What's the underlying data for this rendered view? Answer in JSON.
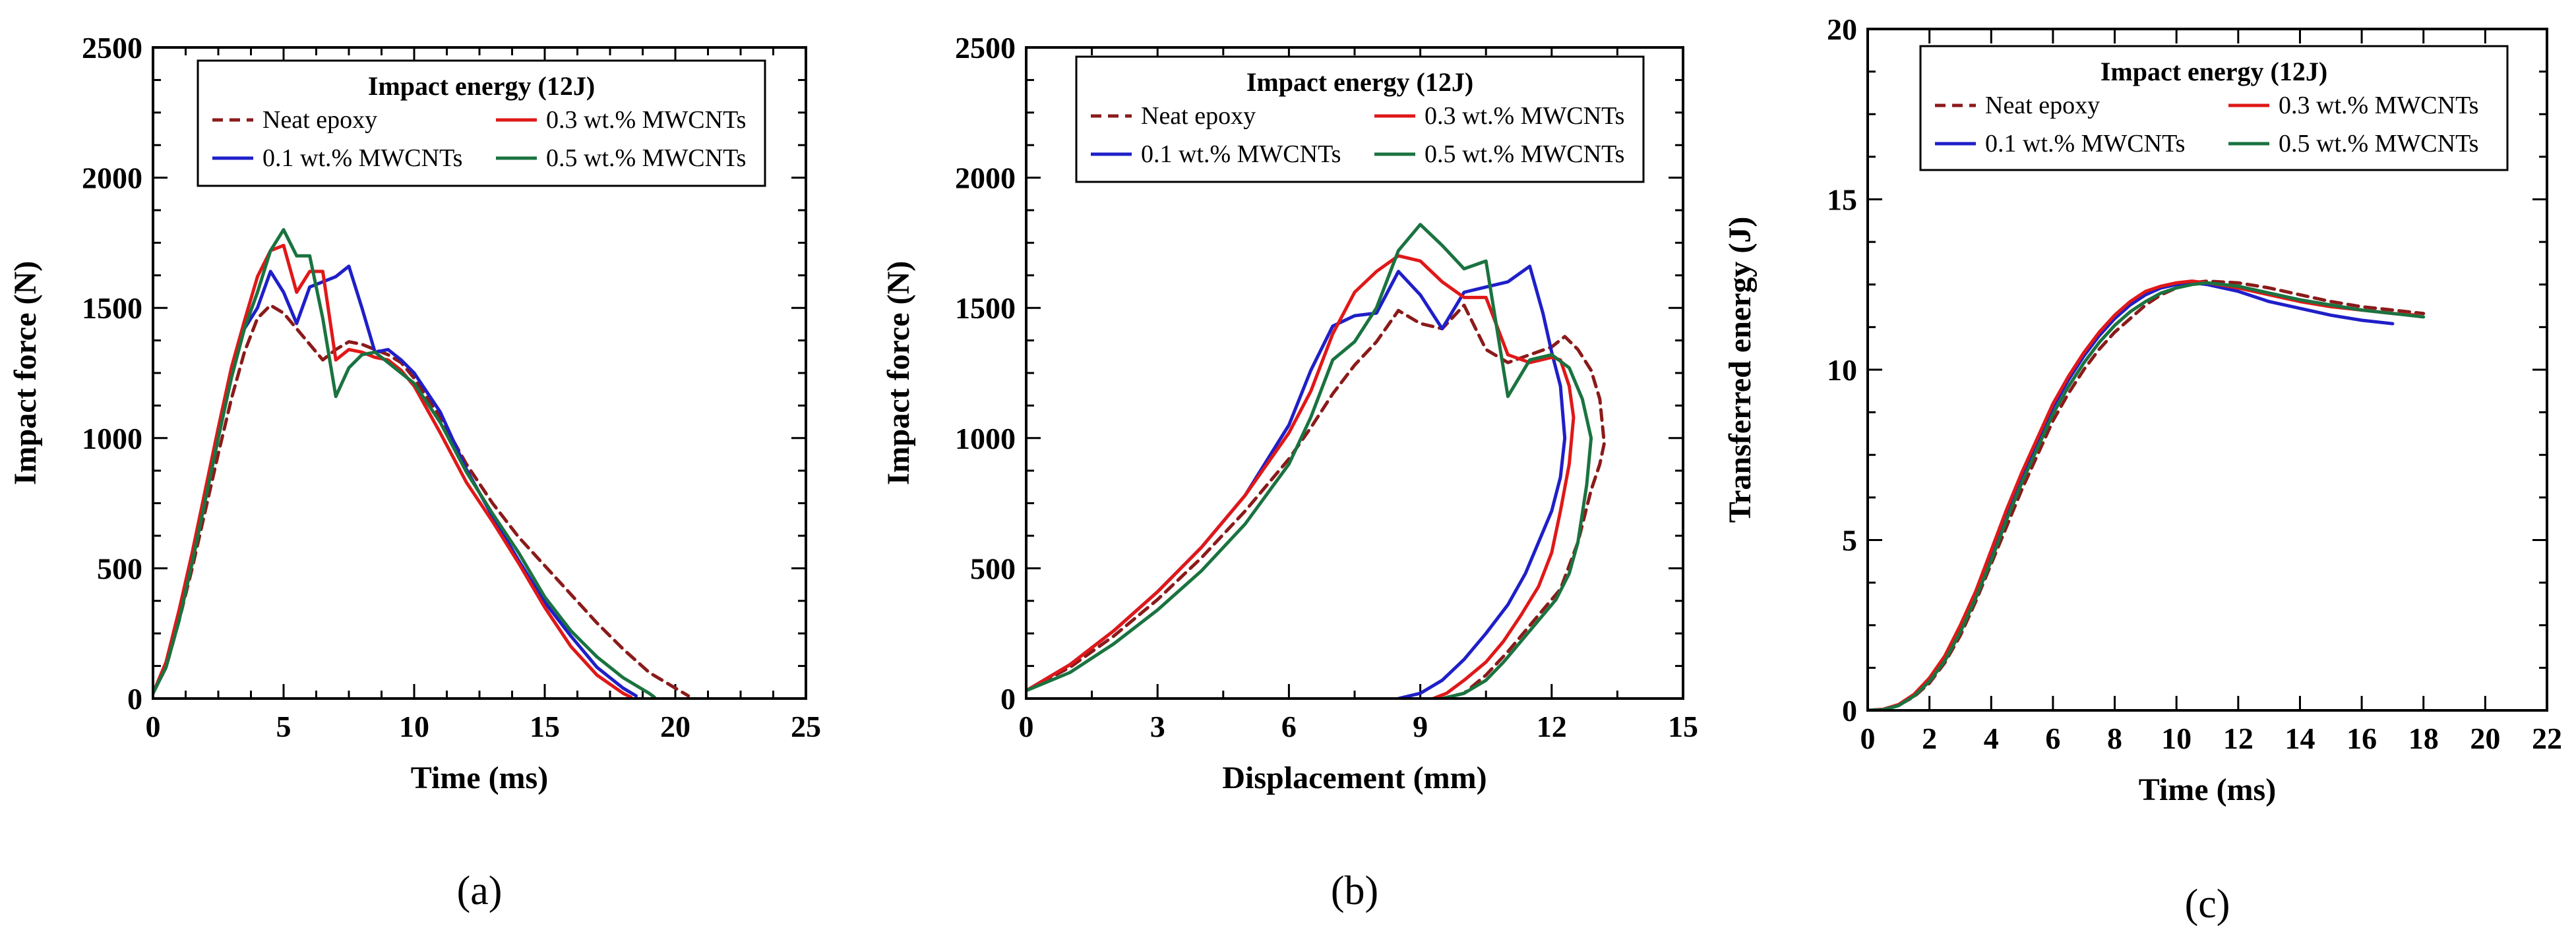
{
  "colors": {
    "neat": "#8b1a1a",
    "mw01": "#1f1fc8",
    "mw03": "#e01818",
    "mw05": "#1a7340"
  },
  "chart_data": [
    {
      "type": "line",
      "panel_label": "(a)",
      "legend_title": "Impact energy (12J)",
      "xlabel": "Time (ms)",
      "ylabel": "Impact force (N)",
      "xlim": [
        0,
        25
      ],
      "ylim": [
        0,
        2500
      ],
      "xticks": [
        "0",
        "5",
        "10",
        "15",
        "20",
        "25"
      ],
      "yticks": [
        "0",
        "500",
        "1000",
        "1500",
        "2000",
        "2500"
      ],
      "series": [
        {
          "name": "Neat epoxy",
          "key": "neat",
          "dashed": true,
          "x": [
            0,
            0.5,
            1,
            1.5,
            2,
            2.5,
            3,
            3.5,
            4,
            4.5,
            5,
            5.5,
            6,
            6.5,
            7,
            7.5,
            8,
            8.5,
            9,
            9.5,
            10,
            11,
            12,
            13,
            14,
            15,
            16,
            17,
            18,
            19,
            20,
            20.5
          ],
          "y": [
            20,
            120,
            300,
            500,
            720,
            940,
            1150,
            1330,
            1460,
            1510,
            1480,
            1420,
            1360,
            1300,
            1340,
            1370,
            1360,
            1340,
            1320,
            1290,
            1230,
            1080,
            900,
            750,
            620,
            510,
            400,
            290,
            190,
            100,
            40,
            10
          ]
        },
        {
          "name": "0.1 wt.% MWCNTs",
          "key": "mw01",
          "dashed": false,
          "x": [
            0,
            0.5,
            1,
            1.5,
            2,
            2.5,
            3,
            3.5,
            4,
            4.5,
            5,
            5.5,
            6,
            6.5,
            7,
            7.5,
            8,
            8.5,
            9,
            9.5,
            10,
            11,
            12,
            13,
            14,
            15,
            16,
            17,
            18,
            18.5
          ],
          "y": [
            20,
            130,
            320,
            540,
            780,
            1020,
            1250,
            1420,
            1500,
            1640,
            1560,
            1440,
            1580,
            1600,
            1620,
            1660,
            1500,
            1330,
            1340,
            1300,
            1250,
            1100,
            880,
            700,
            530,
            370,
            240,
            120,
            40,
            10
          ]
        },
        {
          "name": "0.3 wt.% MWCNTs",
          "key": "mw03",
          "dashed": false,
          "x": [
            0,
            0.5,
            1,
            1.5,
            2,
            2.5,
            3,
            3.5,
            4,
            4.5,
            5,
            5.5,
            6,
            6.5,
            7,
            7.5,
            8,
            8.5,
            9,
            9.5,
            10,
            11,
            12,
            13,
            14,
            15,
            16,
            17,
            18,
            18.3
          ],
          "y": [
            20,
            140,
            340,
            560,
            800,
            1040,
            1270,
            1450,
            1620,
            1720,
            1740,
            1560,
            1640,
            1640,
            1300,
            1340,
            1330,
            1310,
            1300,
            1260,
            1200,
            1020,
            830,
            680,
            520,
            350,
            200,
            90,
            20,
            5
          ]
        },
        {
          "name": "0.5 wt.% MWCNTs",
          "key": "mw05",
          "dashed": false,
          "x": [
            0,
            0.5,
            1,
            1.5,
            2,
            2.5,
            3,
            3.5,
            4,
            4.5,
            5,
            5.5,
            6,
            6.5,
            7,
            7.5,
            8,
            8.5,
            9,
            9.5,
            10,
            11,
            12,
            13,
            14,
            15,
            16,
            17,
            18,
            19,
            19.2
          ],
          "y": [
            20,
            120,
            300,
            520,
            760,
            1000,
            1230,
            1420,
            1560,
            1720,
            1800,
            1700,
            1700,
            1460,
            1160,
            1270,
            1320,
            1330,
            1290,
            1250,
            1210,
            1060,
            870,
            710,
            560,
            390,
            260,
            160,
            80,
            20,
            5
          ]
        }
      ]
    },
    {
      "type": "line",
      "panel_label": "(b)",
      "legend_title": "Impact energy (12J)",
      "xlabel": "Displacement (mm)",
      "ylabel": "Impact force (N)",
      "xlim": [
        0,
        15
      ],
      "ylim": [
        0,
        2500
      ],
      "xticks": [
        "0",
        "3",
        "6",
        "9",
        "12",
        "15"
      ],
      "yticks": [
        "0",
        "500",
        "1000",
        "1500",
        "2000",
        "2500"
      ],
      "series": [
        {
          "name": "Neat epoxy",
          "key": "neat",
          "dashed": true,
          "x": [
            0,
            1,
            2,
            3,
            4,
            5,
            6,
            6.5,
            7,
            7.5,
            8,
            8.5,
            9,
            9.5,
            10,
            10.5,
            11,
            11.5,
            12,
            12.3,
            12.6,
            12.9,
            13.1,
            13.2,
            13.1,
            12.9,
            12.6,
            12.2,
            11.6,
            11,
            10.5,
            10,
            9.5
          ],
          "y": [
            30,
            120,
            240,
            380,
            540,
            720,
            920,
            1040,
            1170,
            1280,
            1370,
            1490,
            1440,
            1420,
            1510,
            1340,
            1290,
            1320,
            1350,
            1390,
            1340,
            1260,
            1150,
            980,
            900,
            800,
            600,
            420,
            300,
            180,
            90,
            20,
            0
          ]
        },
        {
          "name": "0.1 wt.% MWCNTs",
          "key": "mw01",
          "dashed": false,
          "x": [
            0,
            1,
            2,
            3,
            4,
            5,
            6,
            6.5,
            7,
            7.5,
            8,
            8.5,
            9,
            9.5,
            10,
            10.5,
            11,
            11.5,
            11.8,
            12,
            12.2,
            12.3,
            12.2,
            12,
            11.7,
            11.4,
            11,
            10.5,
            10,
            9.5,
            9,
            8.5
          ],
          "y": [
            30,
            130,
            260,
            410,
            580,
            780,
            1050,
            1260,
            1430,
            1470,
            1480,
            1640,
            1550,
            1420,
            1560,
            1580,
            1600,
            1660,
            1480,
            1330,
            1200,
            1000,
            850,
            720,
            600,
            480,
            360,
            250,
            150,
            70,
            20,
            0
          ]
        },
        {
          "name": "0.3 wt.% MWCNTs",
          "key": "mw03",
          "dashed": false,
          "x": [
            0,
            1,
            2,
            3,
            4,
            5,
            6,
            6.5,
            7,
            7.5,
            8,
            8.5,
            9,
            9.5,
            10,
            10.5,
            11,
            11.5,
            12,
            12.2,
            12.4,
            12.5,
            12.4,
            12.2,
            12,
            11.7,
            11.3,
            10.9,
            10.5,
            10,
            9.6,
            9.3
          ],
          "y": [
            30,
            130,
            260,
            410,
            580,
            780,
            1020,
            1180,
            1400,
            1560,
            1640,
            1700,
            1680,
            1600,
            1540,
            1540,
            1320,
            1290,
            1310,
            1300,
            1200,
            1080,
            900,
            720,
            560,
            430,
            320,
            220,
            140,
            70,
            20,
            0
          ]
        },
        {
          "name": "0.5 wt.% MWCNTs",
          "key": "mw05",
          "dashed": false,
          "x": [
            0,
            1,
            2,
            3,
            4,
            5,
            6,
            6.5,
            7,
            7.5,
            8,
            8.5,
            9,
            9.5,
            10,
            10.5,
            11,
            11.5,
            12,
            12.4,
            12.7,
            12.9,
            12.8,
            12.6,
            12.4,
            12.1,
            11.7,
            11.3,
            10.9,
            10.5,
            10,
            9.5
          ],
          "y": [
            30,
            100,
            210,
            340,
            490,
            670,
            900,
            1080,
            1300,
            1370,
            1500,
            1720,
            1820,
            1740,
            1650,
            1680,
            1160,
            1300,
            1320,
            1270,
            1150,
            1000,
            820,
            600,
            480,
            380,
            300,
            220,
            140,
            70,
            20,
            0
          ]
        }
      ]
    },
    {
      "type": "line",
      "panel_label": "(c)",
      "legend_title": "Impact energy (12J)",
      "xlabel": "Time (ms)",
      "ylabel": "Transferred energy (J)",
      "xlim": [
        0,
        22
      ],
      "ylim": [
        0,
        20
      ],
      "xticks": [
        "0",
        "2",
        "4",
        "6",
        "8",
        "10",
        "12",
        "14",
        "16",
        "18",
        "20",
        "22"
      ],
      "yticks": [
        "0",
        "5",
        "10",
        "15",
        "20"
      ],
      "series": [
        {
          "name": "Neat epoxy",
          "key": "neat",
          "dashed": true,
          "x": [
            0,
            0.5,
            1,
            1.5,
            2,
            2.5,
            3,
            3.5,
            4,
            4.5,
            5,
            5.5,
            6,
            6.5,
            7,
            7.5,
            8,
            8.5,
            9,
            9.5,
            10,
            10.5,
            11,
            12,
            13,
            14,
            15,
            16,
            17,
            18
          ],
          "y": [
            0,
            0.03,
            0.15,
            0.4,
            0.8,
            1.4,
            2.2,
            3.2,
            4.3,
            5.4,
            6.5,
            7.5,
            8.5,
            9.3,
            10.0,
            10.6,
            11.1,
            11.5,
            11.9,
            12.2,
            12.4,
            12.55,
            12.6,
            12.55,
            12.4,
            12.2,
            12.0,
            11.85,
            11.75,
            11.65
          ]
        },
        {
          "name": "0.1 wt.% MWCNTs",
          "key": "mw01",
          "dashed": false,
          "x": [
            0,
            0.5,
            1,
            1.5,
            2,
            2.5,
            3,
            3.5,
            4,
            4.5,
            5,
            5.5,
            6,
            6.5,
            7,
            7.5,
            8,
            8.5,
            9,
            9.5,
            10,
            10.5,
            11,
            12,
            13,
            14,
            15,
            16,
            17
          ],
          "y": [
            0,
            0.03,
            0.16,
            0.45,
            0.9,
            1.5,
            2.4,
            3.4,
            4.6,
            5.8,
            6.9,
            7.9,
            8.9,
            9.7,
            10.4,
            11.0,
            11.5,
            11.9,
            12.2,
            12.4,
            12.5,
            12.55,
            12.5,
            12.3,
            12.0,
            11.8,
            11.6,
            11.45,
            11.35
          ]
        },
        {
          "name": "0.3 wt.% MWCNTs",
          "key": "mw03",
          "dashed": false,
          "x": [
            0,
            0.5,
            1,
            1.5,
            2,
            2.5,
            3,
            3.5,
            4,
            4.5,
            5,
            5.5,
            6,
            6.5,
            7,
            7.5,
            8,
            8.5,
            9,
            9.5,
            10,
            10.5,
            11,
            12,
            13,
            14,
            15,
            16,
            17,
            17.8
          ],
          "y": [
            0,
            0.03,
            0.17,
            0.47,
            0.95,
            1.6,
            2.5,
            3.5,
            4.7,
            5.9,
            7.0,
            8.0,
            9.0,
            9.8,
            10.5,
            11.1,
            11.6,
            12.0,
            12.3,
            12.45,
            12.55,
            12.6,
            12.55,
            12.4,
            12.2,
            12.0,
            11.85,
            11.75,
            11.65,
            11.6
          ]
        },
        {
          "name": "0.5 wt.% MWCNTs",
          "key": "mw05",
          "dashed": false,
          "x": [
            0,
            0.5,
            1,
            1.5,
            2,
            2.5,
            3,
            3.5,
            4,
            4.5,
            5,
            5.5,
            6,
            6.5,
            7,
            7.5,
            8,
            8.5,
            9,
            9.5,
            10,
            10.5,
            11,
            12,
            13,
            14,
            15,
            16,
            17,
            18
          ],
          "y": [
            0,
            0.02,
            0.14,
            0.42,
            0.85,
            1.45,
            2.3,
            3.3,
            4.4,
            5.6,
            6.7,
            7.7,
            8.7,
            9.5,
            10.2,
            10.8,
            11.3,
            11.7,
            12.0,
            12.25,
            12.4,
            12.5,
            12.55,
            12.45,
            12.25,
            12.05,
            11.9,
            11.75,
            11.65,
            11.55
          ]
        }
      ]
    }
  ]
}
